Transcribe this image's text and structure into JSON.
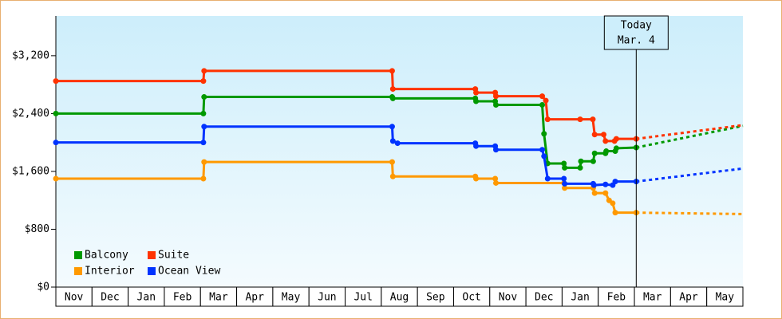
{
  "chart_data": {
    "type": "line",
    "categories": [
      "Nov",
      "Dec",
      "Jan",
      "Feb",
      "Mar",
      "Apr",
      "May",
      "Jun",
      "Jul",
      "Aug",
      "Sep",
      "Oct",
      "Nov",
      "Dec",
      "Jan",
      "Feb",
      "Mar",
      "Apr",
      "May"
    ],
    "xlim": [
      0,
      19
    ],
    "ylim": [
      0,
      3750
    ],
    "yticks": [
      {
        "value": 0,
        "label": "$0"
      },
      {
        "value": 800,
        "label": "$800"
      },
      {
        "value": 1600,
        "label": "$1,600"
      },
      {
        "value": 2400,
        "label": "$2,400"
      },
      {
        "value": 3200,
        "label": "$3,200"
      }
    ],
    "annotation": {
      "x": 16.05,
      "lines": [
        "Today",
        "Mar. 4"
      ]
    },
    "series": [
      {
        "name": "Balcony",
        "color": "#009900",
        "x": [
          0,
          4.08,
          4.1,
          9.3,
          9.32,
          11.6,
          11.62,
          12.15,
          12.17,
          13.45,
          13.5,
          13.6,
          14.05,
          14.07,
          14.5,
          14.52,
          14.86,
          14.9,
          15.2,
          15.22,
          15.47,
          15.5,
          16.05
        ],
        "values": [
          2400,
          2400,
          2630,
          2630,
          2610,
          2610,
          2570,
          2570,
          2520,
          2520,
          2120,
          1710,
          1710,
          1650,
          1650,
          1740,
          1740,
          1850,
          1850,
          1880,
          1880,
          1920,
          1930
        ],
        "projection": {
          "x": [
            16.05,
            19
          ],
          "values": [
            1930,
            2230
          ]
        }
      },
      {
        "name": "Suite",
        "color": "#ff3300",
        "x": [
          0,
          4.08,
          4.1,
          9.3,
          9.32,
          11.6,
          11.62,
          12.15,
          12.17,
          13.45,
          13.55,
          13.6,
          14.5,
          14.85,
          14.9,
          15.15,
          15.2,
          15.45,
          15.5,
          16.05
        ],
        "values": [
          2850,
          2850,
          2990,
          2990,
          2740,
          2740,
          2690,
          2690,
          2640,
          2640,
          2580,
          2320,
          2320,
          2320,
          2110,
          2110,
          2020,
          2020,
          2050,
          2050
        ],
        "projection": {
          "x": [
            16.05,
            19
          ],
          "values": [
            2050,
            2240
          ]
        }
      },
      {
        "name": "Interior",
        "color": "#ff9900",
        "x": [
          0,
          4.08,
          4.1,
          9.3,
          9.32,
          11.6,
          11.62,
          12.15,
          12.17,
          14.05,
          14.07,
          14.86,
          14.9,
          15.2,
          15.3,
          15.4,
          15.47,
          16.05
        ],
        "values": [
          1500,
          1500,
          1730,
          1730,
          1530,
          1530,
          1500,
          1500,
          1440,
          1440,
          1370,
          1370,
          1300,
          1300,
          1200,
          1160,
          1030,
          1030
        ],
        "projection": {
          "x": [
            16.05,
            19
          ],
          "values": [
            1030,
            1010
          ]
        }
      },
      {
        "name": "Ocean View",
        "color": "#0033ff",
        "x": [
          0,
          4.08,
          4.1,
          9.3,
          9.32,
          9.45,
          11.6,
          11.62,
          12.15,
          12.17,
          13.45,
          13.5,
          13.6,
          14.05,
          14.07,
          14.86,
          14.88,
          15.2,
          15.4,
          15.47,
          16.05
        ],
        "values": [
          2000,
          2000,
          2220,
          2220,
          2020,
          1990,
          1990,
          1950,
          1950,
          1900,
          1900,
          1810,
          1500,
          1500,
          1430,
          1430,
          1410,
          1420,
          1410,
          1460,
          1460
        ],
        "projection": {
          "x": [
            16.05,
            19
          ],
          "values": [
            1460,
            1640
          ]
        }
      }
    ]
  }
}
